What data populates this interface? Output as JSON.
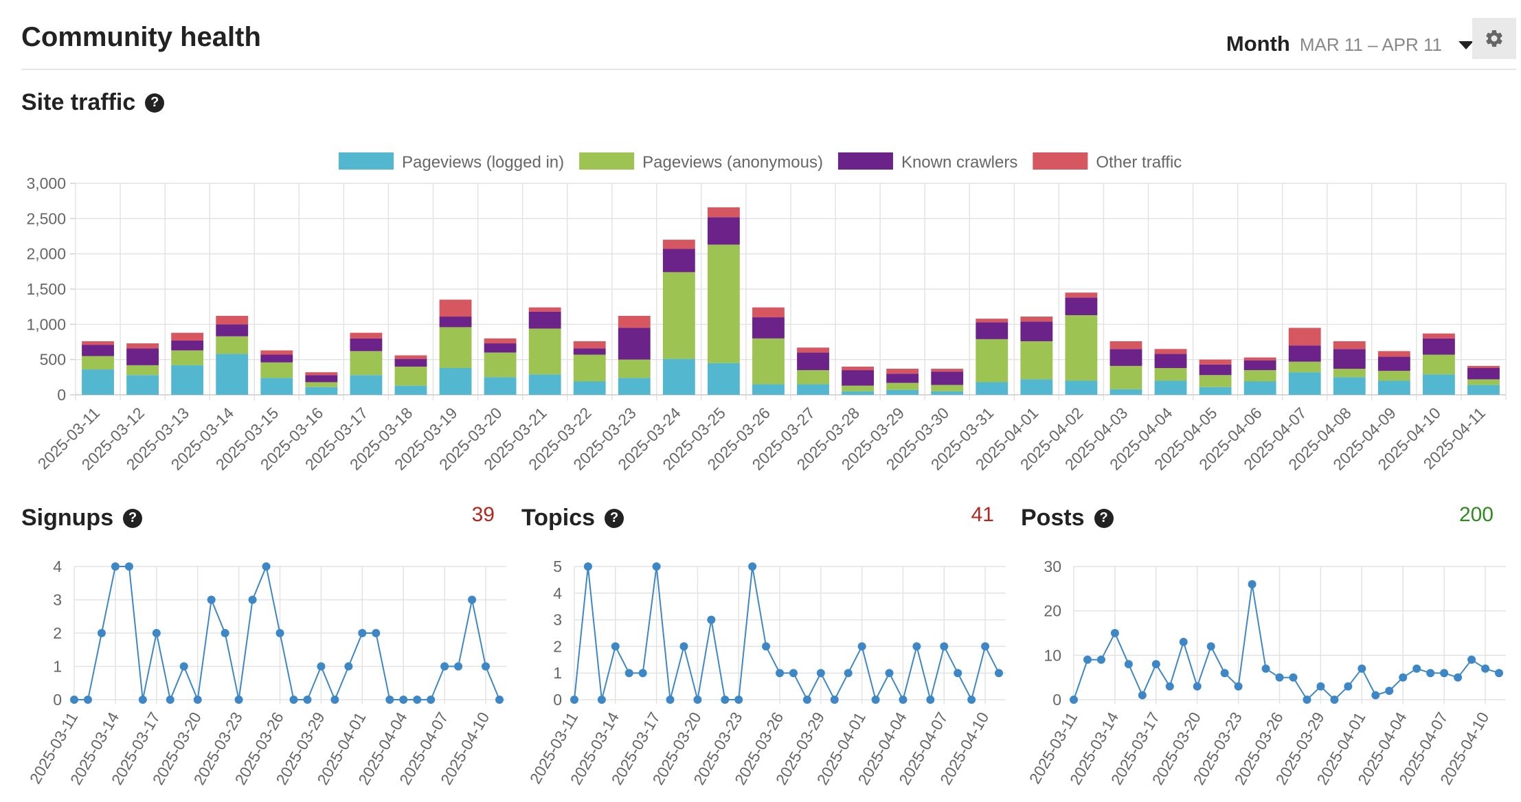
{
  "header": {
    "title": "Community health",
    "period_label": "Month",
    "period_range": "MAR 11 – APR 11",
    "settings_icon": "gear-icon",
    "caret_icon": "caret-down-icon"
  },
  "sections": {
    "site_traffic": {
      "title": "Site traffic",
      "help_icon": "question-icon"
    },
    "signups": {
      "title": "Signups",
      "total": "39",
      "total_color": "#b3261e"
    },
    "topics": {
      "title": "Topics",
      "total": "41",
      "total_color": "#b3261e"
    },
    "posts": {
      "title": "Posts",
      "total": "200",
      "total_color": "#2e8b1e"
    }
  },
  "chart_data": [
    {
      "type": "bar",
      "stacked": true,
      "legend_position": "top",
      "grid": true,
      "ylim": [
        0,
        3000
      ],
      "yticks": [
        "0",
        "500",
        "1,000",
        "1,500",
        "2,000",
        "2,500",
        "3,000"
      ],
      "categories": [
        "2025-03-11",
        "2025-03-12",
        "2025-03-13",
        "2025-03-14",
        "2025-03-15",
        "2025-03-16",
        "2025-03-17",
        "2025-03-18",
        "2025-03-19",
        "2025-03-20",
        "2025-03-21",
        "2025-03-22",
        "2025-03-23",
        "2025-03-24",
        "2025-03-25",
        "2025-03-26",
        "2025-03-27",
        "2025-03-28",
        "2025-03-29",
        "2025-03-30",
        "2025-03-31",
        "2025-04-01",
        "2025-04-02",
        "2025-04-03",
        "2025-04-04",
        "2025-04-05",
        "2025-04-06",
        "2025-04-07",
        "2025-04-08",
        "2025-04-09",
        "2025-04-10",
        "2025-04-11"
      ],
      "series": [
        {
          "name": "Pageviews (logged in)",
          "color": "#54b7d0",
          "values": [
            360,
            280,
            420,
            580,
            240,
            110,
            280,
            130,
            380,
            250,
            290,
            190,
            240,
            510,
            450,
            150,
            150,
            50,
            70,
            50,
            180,
            220,
            200,
            80,
            200,
            110,
            190,
            320,
            250,
            200,
            290,
            140
          ]
        },
        {
          "name": "Pageviews (anonymous)",
          "color": "#9dc353",
          "values": [
            190,
            140,
            210,
            250,
            220,
            70,
            340,
            270,
            580,
            350,
            650,
            380,
            260,
            1230,
            1680,
            650,
            200,
            80,
            100,
            90,
            610,
            540,
            930,
            330,
            180,
            170,
            160,
            150,
            120,
            140,
            280,
            80
          ]
        },
        {
          "name": "Known crawlers",
          "color": "#6b2389",
          "values": [
            160,
            240,
            140,
            170,
            110,
            100,
            180,
            110,
            150,
            130,
            240,
            90,
            450,
            330,
            390,
            300,
            250,
            220,
            130,
            190,
            240,
            280,
            250,
            240,
            200,
            150,
            140,
            230,
            280,
            200,
            230,
            160
          ]
        },
        {
          "name": "Other traffic",
          "color": "#d75760",
          "values": [
            50,
            70,
            110,
            120,
            60,
            40,
            80,
            50,
            240,
            70,
            60,
            100,
            170,
            130,
            140,
            140,
            70,
            50,
            70,
            40,
            50,
            70,
            70,
            110,
            70,
            70,
            40,
            250,
            110,
            80,
            70,
            30
          ]
        }
      ]
    },
    {
      "type": "line",
      "title": "Signups",
      "color": "#3d87c6",
      "grid": true,
      "ylim": [
        0,
        4
      ],
      "yticks": [
        "0",
        "1",
        "2",
        "3",
        "4"
      ],
      "x_tick_labels": [
        "2025-03-11",
        "2025-03-14",
        "2025-03-17",
        "2025-03-20",
        "2025-03-23",
        "2025-03-26",
        "2025-03-29",
        "2025-04-01",
        "2025-04-04",
        "2025-04-07",
        "2025-04-10"
      ],
      "x": [
        "2025-03-11",
        "2025-03-12",
        "2025-03-13",
        "2025-03-14",
        "2025-03-15",
        "2025-03-16",
        "2025-03-17",
        "2025-03-18",
        "2025-03-19",
        "2025-03-20",
        "2025-03-21",
        "2025-03-22",
        "2025-03-23",
        "2025-03-24",
        "2025-03-25",
        "2025-03-26",
        "2025-03-27",
        "2025-03-28",
        "2025-03-29",
        "2025-03-30",
        "2025-03-31",
        "2025-04-01",
        "2025-04-02",
        "2025-04-03",
        "2025-04-04",
        "2025-04-05",
        "2025-04-06",
        "2025-04-07",
        "2025-04-08",
        "2025-04-09",
        "2025-04-10",
        "2025-04-11"
      ],
      "values": [
        0,
        0,
        2,
        4,
        4,
        0,
        2,
        0,
        1,
        0,
        3,
        2,
        0,
        3,
        4,
        2,
        0,
        0,
        1,
        0,
        1,
        2,
        2,
        0,
        0,
        0,
        0,
        1,
        1,
        3,
        1,
        0
      ]
    },
    {
      "type": "line",
      "title": "Topics",
      "color": "#3d87c6",
      "grid": true,
      "ylim": [
        0,
        5
      ],
      "yticks": [
        "0",
        "1",
        "2",
        "3",
        "4",
        "5"
      ],
      "x_tick_labels": [
        "2025-03-11",
        "2025-03-14",
        "2025-03-17",
        "2025-03-20",
        "2025-03-23",
        "2025-03-26",
        "2025-03-29",
        "2025-04-01",
        "2025-04-04",
        "2025-04-07",
        "2025-04-10"
      ],
      "x": [
        "2025-03-11",
        "2025-03-12",
        "2025-03-13",
        "2025-03-14",
        "2025-03-15",
        "2025-03-16",
        "2025-03-17",
        "2025-03-18",
        "2025-03-19",
        "2025-03-20",
        "2025-03-21",
        "2025-03-22",
        "2025-03-23",
        "2025-03-24",
        "2025-03-25",
        "2025-03-26",
        "2025-03-27",
        "2025-03-28",
        "2025-03-29",
        "2025-03-30",
        "2025-03-31",
        "2025-04-01",
        "2025-04-02",
        "2025-04-03",
        "2025-04-04",
        "2025-04-05",
        "2025-04-06",
        "2025-04-07",
        "2025-04-08",
        "2025-04-09",
        "2025-04-10",
        "2025-04-11"
      ],
      "values": [
        0,
        5,
        0,
        2,
        1,
        1,
        5,
        0,
        2,
        0,
        3,
        0,
        0,
        5,
        2,
        1,
        1,
        0,
        1,
        0,
        1,
        2,
        0,
        1,
        0,
        2,
        0,
        2,
        1,
        0,
        2,
        1
      ]
    },
    {
      "type": "line",
      "title": "Posts",
      "color": "#3d87c6",
      "grid": true,
      "ylim": [
        0,
        30
      ],
      "yticks": [
        "0",
        "10",
        "20",
        "30"
      ],
      "x_tick_labels": [
        "2025-03-11",
        "2025-03-14",
        "2025-03-17",
        "2025-03-20",
        "2025-03-23",
        "2025-03-26",
        "2025-03-29",
        "2025-04-01",
        "2025-04-04",
        "2025-04-07",
        "2025-04-10"
      ],
      "x": [
        "2025-03-11",
        "2025-03-12",
        "2025-03-13",
        "2025-03-14",
        "2025-03-15",
        "2025-03-16",
        "2025-03-17",
        "2025-03-18",
        "2025-03-19",
        "2025-03-20",
        "2025-03-21",
        "2025-03-22",
        "2025-03-23",
        "2025-03-24",
        "2025-03-25",
        "2025-03-26",
        "2025-03-27",
        "2025-03-28",
        "2025-03-29",
        "2025-03-30",
        "2025-03-31",
        "2025-04-01",
        "2025-04-02",
        "2025-04-03",
        "2025-04-04",
        "2025-04-05",
        "2025-04-06",
        "2025-04-07",
        "2025-04-08",
        "2025-04-09",
        "2025-04-10",
        "2025-04-11"
      ],
      "values": [
        0,
        9,
        9,
        15,
        8,
        1,
        8,
        3,
        13,
        3,
        12,
        6,
        3,
        26,
        7,
        5,
        5,
        0,
        3,
        0,
        3,
        7,
        1,
        2,
        5,
        7,
        6,
        6,
        5,
        9,
        7,
        6
      ]
    }
  ]
}
